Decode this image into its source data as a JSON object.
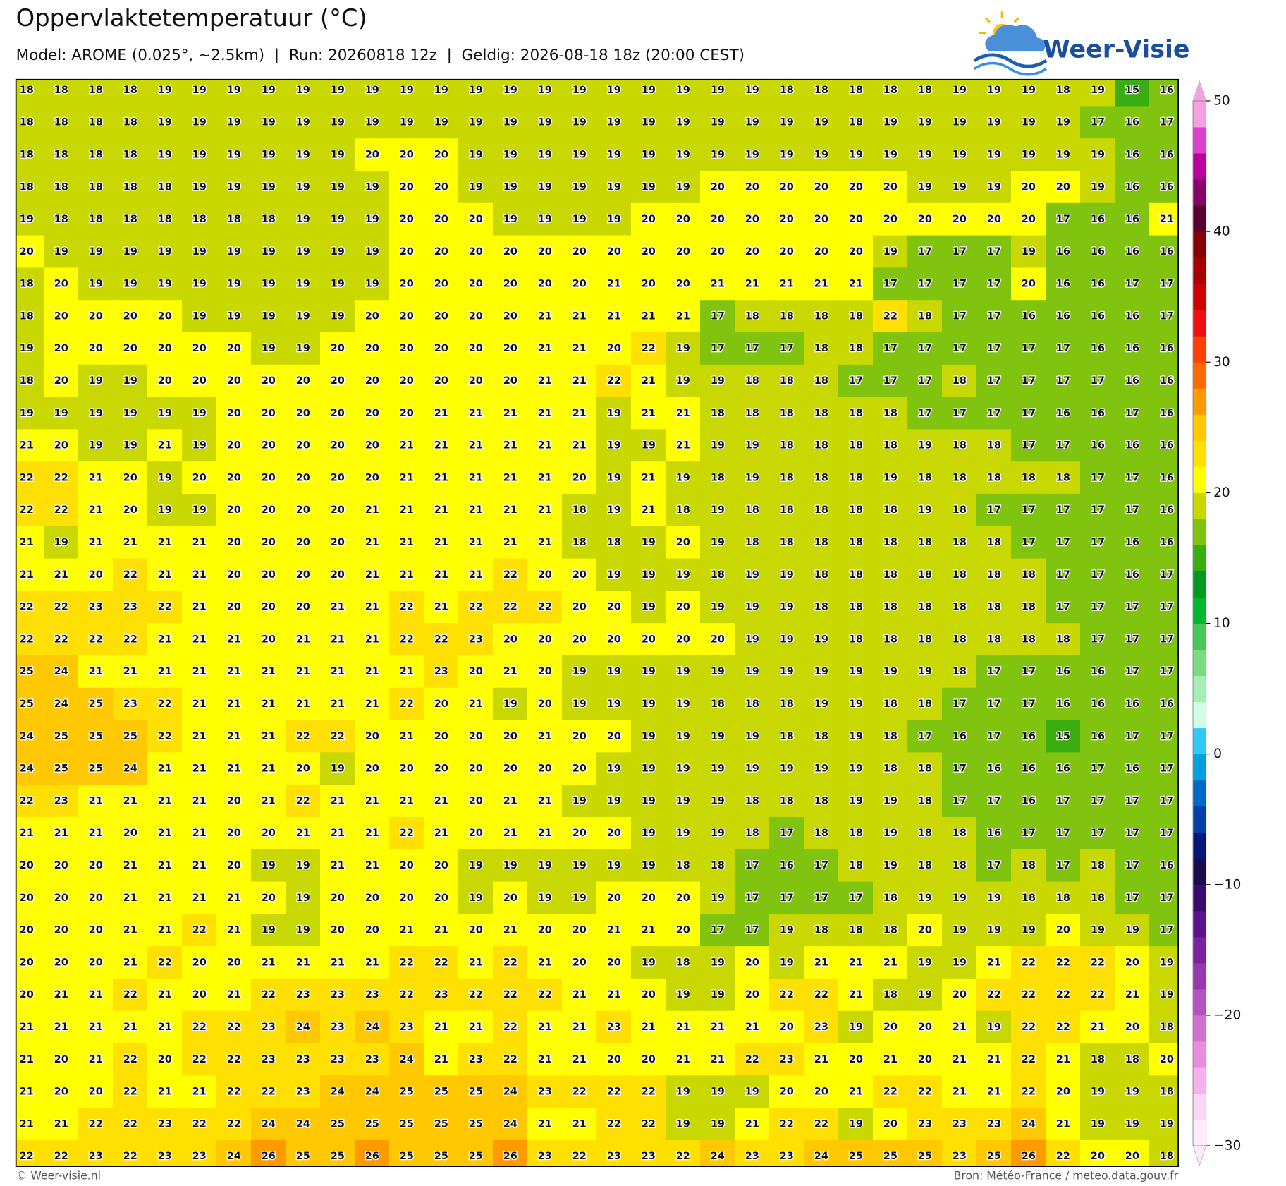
{
  "header": {
    "title": "Oppervlaktetemperatuur (°C)",
    "subtitle": "Model: AROME (0.025°, ~2.5km)  |  Run: 20260818 12z  |  Geldig: 2026-08-18 18z (20:00 CEST)"
  },
  "logo": {
    "text": "Weer-Visie"
  },
  "grid": {
    "rows": [
      [
        18,
        18,
        18,
        18,
        19,
        19,
        19,
        19,
        19,
        19,
        19,
        19,
        19,
        19,
        19,
        19,
        19,
        19,
        19,
        19,
        19,
        19,
        18,
        18,
        18,
        18,
        18,
        19,
        19,
        19,
        18,
        19,
        15,
        16
      ],
      [
        18,
        18,
        18,
        18,
        19,
        19,
        19,
        19,
        19,
        19,
        19,
        19,
        19,
        19,
        19,
        19,
        19,
        19,
        19,
        19,
        19,
        19,
        19,
        19,
        18,
        19,
        19,
        19,
        19,
        19,
        19,
        17,
        16,
        17
      ],
      [
        18,
        18,
        18,
        18,
        19,
        19,
        19,
        19,
        19,
        19,
        20,
        20,
        20,
        19,
        19,
        19,
        19,
        19,
        19,
        19,
        19,
        19,
        19,
        19,
        19,
        19,
        19,
        19,
        19,
        19,
        19,
        19,
        16,
        16
      ],
      [
        18,
        18,
        18,
        18,
        18,
        19,
        19,
        19,
        19,
        19,
        19,
        20,
        20,
        19,
        19,
        19,
        19,
        19,
        19,
        19,
        20,
        20,
        20,
        20,
        20,
        20,
        19,
        19,
        19,
        20,
        20,
        19,
        16,
        16
      ],
      [
        19,
        18,
        18,
        18,
        18,
        18,
        18,
        18,
        19,
        19,
        19,
        20,
        20,
        20,
        19,
        19,
        19,
        19,
        20,
        20,
        20,
        20,
        20,
        20,
        20,
        20,
        20,
        20,
        20,
        20,
        17,
        16,
        16,
        21
      ],
      [
        20,
        19,
        19,
        19,
        19,
        19,
        19,
        19,
        19,
        19,
        19,
        20,
        20,
        20,
        20,
        20,
        20,
        20,
        20,
        20,
        20,
        20,
        20,
        20,
        20,
        19,
        17,
        17,
        17,
        19,
        16,
        16,
        16,
        16
      ],
      [
        18,
        20,
        19,
        19,
        19,
        19,
        19,
        19,
        19,
        19,
        19,
        20,
        20,
        20,
        20,
        20,
        20,
        21,
        20,
        20,
        21,
        21,
        21,
        21,
        21,
        17,
        17,
        17,
        17,
        20,
        16,
        16,
        17,
        17
      ],
      [
        18,
        20,
        20,
        20,
        20,
        19,
        19,
        19,
        19,
        19,
        20,
        20,
        20,
        20,
        20,
        21,
        21,
        21,
        21,
        21,
        17,
        18,
        18,
        18,
        18,
        22,
        18,
        17,
        17,
        16,
        16,
        16,
        16,
        17
      ],
      [
        19,
        20,
        20,
        20,
        20,
        20,
        20,
        19,
        19,
        20,
        20,
        20,
        20,
        20,
        20,
        21,
        21,
        20,
        22,
        19,
        17,
        17,
        17,
        18,
        18,
        17,
        17,
        17,
        17,
        17,
        17,
        16,
        16,
        16
      ],
      [
        18,
        20,
        19,
        19,
        20,
        20,
        20,
        20,
        20,
        20,
        20,
        20,
        20,
        20,
        20,
        21,
        21,
        22,
        21,
        19,
        19,
        18,
        18,
        18,
        17,
        17,
        17,
        18,
        17,
        17,
        17,
        17,
        16,
        16
      ],
      [
        19,
        19,
        19,
        19,
        19,
        19,
        20,
        20,
        20,
        20,
        20,
        20,
        21,
        21,
        21,
        21,
        21,
        19,
        21,
        21,
        18,
        18,
        18,
        18,
        18,
        18,
        17,
        17,
        17,
        17,
        16,
        16,
        17,
        16
      ],
      [
        21,
        20,
        19,
        19,
        21,
        19,
        20,
        20,
        20,
        20,
        20,
        21,
        21,
        21,
        21,
        21,
        21,
        19,
        19,
        21,
        19,
        19,
        18,
        18,
        18,
        18,
        19,
        18,
        18,
        17,
        17,
        16,
        16,
        16
      ],
      [
        22,
        22,
        21,
        20,
        19,
        20,
        20,
        20,
        20,
        20,
        20,
        21,
        21,
        21,
        21,
        21,
        20,
        19,
        21,
        19,
        18,
        19,
        18,
        18,
        18,
        19,
        18,
        18,
        18,
        18,
        18,
        17,
        17,
        16
      ],
      [
        22,
        22,
        21,
        20,
        19,
        19,
        20,
        20,
        20,
        20,
        21,
        21,
        21,
        21,
        21,
        21,
        18,
        19,
        21,
        18,
        19,
        18,
        18,
        18,
        18,
        18,
        19,
        18,
        17,
        17,
        17,
        17,
        17,
        16
      ],
      [
        21,
        19,
        21,
        21,
        21,
        21,
        20,
        20,
        20,
        20,
        21,
        21,
        21,
        21,
        21,
        21,
        18,
        18,
        19,
        20,
        19,
        18,
        18,
        18,
        18,
        18,
        18,
        18,
        18,
        17,
        17,
        17,
        16,
        16
      ],
      [
        21,
        21,
        20,
        22,
        21,
        21,
        20,
        20,
        20,
        20,
        21,
        21,
        21,
        21,
        22,
        20,
        20,
        19,
        19,
        19,
        18,
        19,
        19,
        18,
        18,
        18,
        18,
        18,
        18,
        18,
        17,
        17,
        16,
        17
      ],
      [
        22,
        22,
        23,
        23,
        22,
        21,
        20,
        20,
        20,
        21,
        21,
        22,
        21,
        22,
        22,
        22,
        20,
        20,
        19,
        20,
        19,
        19,
        19,
        18,
        18,
        18,
        18,
        18,
        18,
        18,
        17,
        17,
        17,
        17
      ],
      [
        22,
        22,
        22,
        22,
        21,
        21,
        21,
        20,
        21,
        21,
        21,
        22,
        22,
        23,
        20,
        20,
        20,
        20,
        20,
        20,
        20,
        19,
        19,
        19,
        18,
        18,
        18,
        18,
        18,
        18,
        18,
        17,
        17,
        17
      ],
      [
        25,
        24,
        21,
        21,
        21,
        21,
        21,
        21,
        21,
        21,
        21,
        21,
        23,
        20,
        21,
        20,
        19,
        19,
        19,
        19,
        19,
        19,
        19,
        19,
        19,
        19,
        19,
        18,
        17,
        17,
        16,
        16,
        17,
        17
      ],
      [
        25,
        24,
        25,
        23,
        22,
        21,
        21,
        21,
        21,
        21,
        21,
        22,
        20,
        21,
        19,
        20,
        19,
        19,
        19,
        19,
        18,
        18,
        18,
        19,
        19,
        18,
        18,
        17,
        17,
        17,
        16,
        16,
        16,
        16
      ],
      [
        24,
        25,
        25,
        25,
        22,
        21,
        21,
        21,
        22,
        22,
        20,
        21,
        20,
        20,
        20,
        21,
        20,
        20,
        19,
        19,
        19,
        19,
        18,
        18,
        19,
        18,
        17,
        16,
        17,
        16,
        15,
        16,
        17,
        17
      ],
      [
        24,
        25,
        25,
        24,
        21,
        21,
        21,
        21,
        20,
        19,
        20,
        20,
        20,
        20,
        20,
        20,
        20,
        19,
        19,
        19,
        19,
        19,
        19,
        19,
        19,
        18,
        18,
        17,
        16,
        16,
        16,
        17,
        16,
        17
      ],
      [
        22,
        23,
        21,
        21,
        21,
        21,
        20,
        21,
        22,
        21,
        21,
        21,
        21,
        20,
        21,
        21,
        19,
        19,
        19,
        19,
        19,
        18,
        18,
        18,
        19,
        19,
        18,
        17,
        17,
        16,
        17,
        17,
        17,
        17
      ],
      [
        21,
        21,
        21,
        20,
        21,
        21,
        20,
        20,
        21,
        21,
        21,
        22,
        21,
        20,
        21,
        21,
        20,
        20,
        19,
        19,
        19,
        18,
        17,
        18,
        18,
        19,
        18,
        18,
        16,
        17,
        17,
        17,
        17,
        17
      ],
      [
        20,
        20,
        20,
        21,
        21,
        21,
        20,
        19,
        19,
        21,
        21,
        20,
        20,
        19,
        19,
        19,
        19,
        19,
        19,
        18,
        18,
        17,
        16,
        17,
        18,
        19,
        18,
        18,
        17,
        18,
        17,
        18,
        17,
        16
      ],
      [
        20,
        20,
        20,
        21,
        21,
        21,
        21,
        20,
        19,
        20,
        20,
        20,
        20,
        19,
        20,
        19,
        19,
        20,
        20,
        20,
        19,
        17,
        17,
        17,
        17,
        18,
        19,
        19,
        19,
        18,
        18,
        18,
        17,
        17
      ],
      [
        20,
        20,
        20,
        21,
        21,
        22,
        21,
        19,
        19,
        20,
        20,
        21,
        21,
        20,
        21,
        20,
        20,
        21,
        21,
        20,
        17,
        17,
        19,
        18,
        18,
        18,
        20,
        19,
        19,
        19,
        20,
        19,
        19,
        17
      ],
      [
        20,
        20,
        20,
        21,
        22,
        20,
        20,
        21,
        21,
        21,
        21,
        22,
        22,
        21,
        22,
        21,
        20,
        20,
        19,
        18,
        19,
        20,
        19,
        21,
        21,
        21,
        19,
        19,
        21,
        22,
        22,
        22,
        20,
        19
      ],
      [
        20,
        21,
        21,
        22,
        21,
        20,
        21,
        22,
        23,
        23,
        23,
        22,
        23,
        22,
        22,
        22,
        21,
        21,
        20,
        19,
        19,
        20,
        22,
        22,
        21,
        18,
        19,
        20,
        22,
        22,
        22,
        22,
        21,
        19
      ],
      [
        21,
        21,
        21,
        21,
        21,
        22,
        22,
        23,
        24,
        23,
        24,
        23,
        21,
        21,
        22,
        21,
        21,
        23,
        21,
        21,
        21,
        21,
        20,
        23,
        19,
        20,
        20,
        21,
        19,
        22,
        22,
        21,
        20,
        18
      ],
      [
        21,
        20,
        21,
        22,
        20,
        22,
        22,
        23,
        23,
        23,
        23,
        24,
        21,
        23,
        22,
        21,
        21,
        20,
        20,
        21,
        21,
        22,
        23,
        21,
        20,
        21,
        20,
        21,
        21,
        22,
        21,
        18,
        18,
        20
      ],
      [
        21,
        20,
        20,
        22,
        21,
        21,
        22,
        22,
        23,
        24,
        24,
        25,
        25,
        25,
        24,
        23,
        22,
        22,
        22,
        19,
        19,
        19,
        20,
        20,
        21,
        22,
        22,
        21,
        21,
        22,
        20,
        19,
        19,
        18
      ],
      [
        21,
        21,
        22,
        22,
        23,
        22,
        22,
        24,
        24,
        25,
        25,
        25,
        25,
        25,
        24,
        21,
        21,
        22,
        22,
        19,
        19,
        21,
        22,
        22,
        19,
        20,
        23,
        23,
        23,
        24,
        21,
        19,
        19,
        19
      ],
      [
        22,
        22,
        23,
        22,
        23,
        23,
        24,
        26,
        25,
        25,
        26,
        25,
        25,
        25,
        26,
        23,
        22,
        23,
        23,
        22,
        24,
        23,
        23,
        24,
        25,
        25,
        25,
        23,
        25,
        26,
        22,
        20,
        20,
        18
      ]
    ]
  },
  "colorbar": {
    "lim": [
      -30,
      50
    ],
    "ticks": [
      {
        "value": -30,
        "label": "−30"
      },
      {
        "value": -20,
        "label": "−20"
      },
      {
        "value": -10,
        "label": "−10"
      },
      0,
      10,
      20,
      30,
      40,
      50
    ],
    "colors": [
      "#fdeafa",
      "#fcd4f4",
      "#f5b0ee",
      "#e88ce2",
      "#d070d2",
      "#b454c2",
      "#9638b0",
      "#7a22a0",
      "#5a1290",
      "#3a0a70",
      "#1a0a50",
      "#001878",
      "#0040a8",
      "#0068c8",
      "#00a0e0",
      "#30c8f8",
      "#d0fce8",
      "#a4f0b4",
      "#78dc80",
      "#48c858",
      "#00b830",
      "#009a20",
      "#3aae10",
      "#80c410",
      "#c8d800",
      "#ffff00",
      "#ffe000",
      "#ffc800",
      "#ff9a00",
      "#ff6a00",
      "#ff4000",
      "#ee1010",
      "#d00000",
      "#aa0000",
      "#880000",
      "#5a0030",
      "#880068",
      "#b8009c",
      "#e040d0",
      "#f6a0e2"
    ]
  },
  "footer": {
    "left": "© Weer-visie.nl",
    "right": "Bron: Météo-France / meteo.data.gouv.fr"
  }
}
